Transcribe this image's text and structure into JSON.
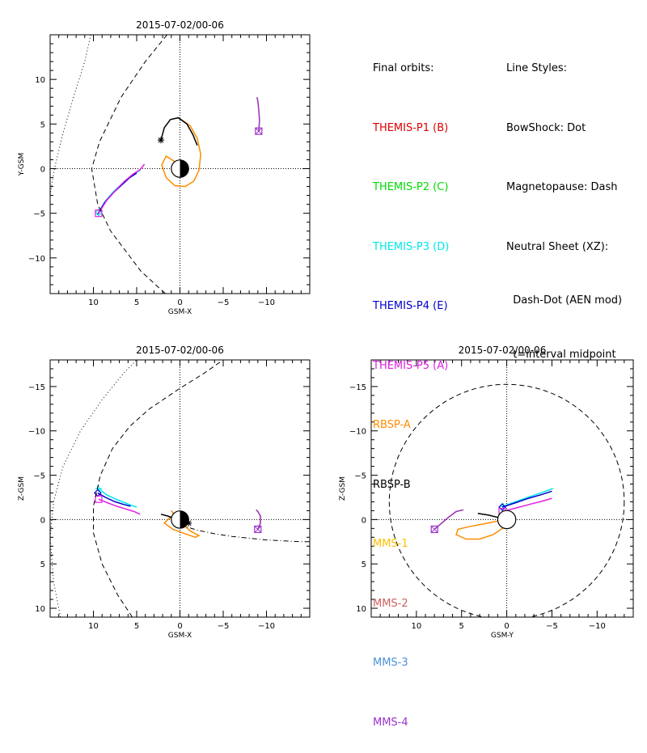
{
  "chart_data": [
    {
      "type": "line",
      "title": "2015-07-02/00-06",
      "xlabel": "GSM-X",
      "ylabel": "Y-GSM",
      "xlim": [
        15,
        -15
      ],
      "ylim": [
        15,
        -14
      ],
      "xticks": [
        10,
        5,
        0,
        -5,
        -10
      ],
      "yticks": [
        -10,
        -5,
        0,
        5,
        10
      ],
      "series": [
        {
          "name": "THEMIS-P3 (D)",
          "color": "#00e8e8",
          "style": "solid",
          "x": [
            9.4,
            8.6,
            7.6,
            6.6,
            5.6,
            4.8,
            4.6
          ],
          "y": [
            -4.9,
            -3.6,
            -2.5,
            -1.6,
            -0.8,
            -0.3,
            -0.2
          ],
          "end_marker": "diamond"
        },
        {
          "name": "THEMIS-P4 (E)",
          "color": "#0000cc",
          "style": "solid",
          "x": [
            9.5,
            8.7,
            7.7,
            6.7,
            5.8,
            5.0
          ],
          "y": [
            -5.1,
            -3.8,
            -2.7,
            -1.8,
            -1.0,
            -0.5
          ]
        },
        {
          "name": "THEMIS-P5 (A)",
          "color": "#e020e0",
          "style": "solid",
          "x": [
            9.4,
            8.5,
            7.4,
            6.4,
            5.4,
            4.6,
            4.1
          ],
          "y": [
            -5.0,
            -3.6,
            -2.4,
            -1.4,
            -0.6,
            -0.1,
            0.5
          ],
          "end_marker": "square"
        },
        {
          "name": "RBSP-A",
          "color": "#ff8c00",
          "style": "solid",
          "x": [
            0.0,
            -1.2,
            -2.0,
            -2.4,
            -2.2,
            -1.6,
            -0.6,
            0.6,
            1.6,
            2.1,
            1.6,
            0.6,
            0.0
          ],
          "y": [
            5.6,
            4.8,
            3.4,
            1.6,
            -0.2,
            -1.4,
            -2.0,
            -1.9,
            -1.0,
            0.4,
            1.4,
            0.8,
            0.0
          ]
        },
        {
          "name": "RBSP-B",
          "color": "#000000",
          "style": "solid",
          "x": [
            2.2,
            1.8,
            1.1,
            0.2,
            -0.8,
            -1.5,
            -2.0
          ],
          "y": [
            3.2,
            4.6,
            5.5,
            5.7,
            5.0,
            3.8,
            2.6
          ],
          "end_marker": "star"
        },
        {
          "name": "MMS-1",
          "color": "#ffc000",
          "style": "solid",
          "x": [
            -9.1,
            -9.2,
            -9.1,
            -9.0,
            -8.9
          ],
          "y": [
            4.2,
            5.4,
            6.6,
            7.6,
            8.0
          ]
        },
        {
          "name": "MMS-4",
          "color": "#9933cc",
          "style": "solid",
          "x": [
            -9.1,
            -9.2,
            -9.1,
            -9.0,
            -8.9
          ],
          "y": [
            4.2,
            5.4,
            6.6,
            7.6,
            8.0
          ],
          "end_marker": "square-x"
        },
        {
          "name": "BowShock",
          "color": "#000000",
          "style": "dot",
          "x": [
            10.3,
            11.0,
            12.3,
            13.5,
            14.5,
            15.0
          ],
          "y": [
            15.0,
            12.0,
            8.0,
            4.0,
            0.0,
            -3.0
          ]
        },
        {
          "name": "Magnetopause",
          "color": "#000000",
          "style": "dash",
          "x": [
            1.5,
            4.0,
            6.8,
            9.3,
            10.2,
            9.5,
            8.0,
            4.5,
            0.0
          ],
          "y": [
            15.0,
            12.0,
            8.0,
            3.0,
            0.0,
            -4.0,
            -7.0,
            -11.5,
            -15.5
          ]
        }
      ]
    },
    {
      "type": "line",
      "title": "2015-07-02/00-06",
      "xlabel": "GSM-X",
      "ylabel": "Z-GSM",
      "xlim": [
        15,
        -15
      ],
      "ylim": [
        -18,
        11
      ],
      "xticks": [
        10,
        5,
        0,
        -5,
        -10
      ],
      "yticks": [
        10,
        5,
        0,
        -5,
        -10,
        -15
      ],
      "series": [
        {
          "name": "THEMIS-P3 (D)",
          "color": "#00e8e8",
          "style": "solid",
          "x": [
            9.4,
            8.5,
            7.4,
            6.4,
            5.6,
            5.0
          ],
          "y": [
            -3.5,
            -2.8,
            -2.3,
            -1.9,
            -1.6,
            -1.4
          ],
          "end_marker": "plus"
        },
        {
          "name": "THEMIS-P4 (E)",
          "color": "#0000cc",
          "style": "solid",
          "x": [
            9.5,
            8.6,
            7.5,
            6.5,
            5.7
          ],
          "y": [
            -3.0,
            -2.5,
            -2.0,
            -1.7,
            -1.5
          ],
          "end_marker": "diamond"
        },
        {
          "name": "THEMIS-P5 (A)",
          "color": "#e020e0",
          "style": "solid",
          "x": [
            9.4,
            8.4,
            7.3,
            6.3,
            5.3,
            4.6
          ],
          "y": [
            -2.3,
            -1.9,
            -1.5,
            -1.2,
            -0.9,
            -0.6
          ],
          "end_marker": "square"
        },
        {
          "name": "RBSP-A",
          "color": "#ff8c00",
          "style": "solid",
          "x": [
            1.0,
            0.0,
            -1.2,
            -2.2,
            -1.8,
            -0.6,
            0.8,
            1.8,
            1.2,
            0.0
          ],
          "y": [
            -1.0,
            0.2,
            1.3,
            1.8,
            2.0,
            1.6,
            1.1,
            0.4,
            -0.2,
            0.0
          ]
        },
        {
          "name": "RBSP-B",
          "color": "#000000",
          "style": "solid",
          "x": [
            -1.0,
            -0.2,
            0.6,
            1.4,
            2.2
          ],
          "y": [
            0.4,
            0.2,
            -0.1,
            -0.4,
            -0.6
          ],
          "end_marker": "star"
        },
        {
          "name": "MMS-1",
          "color": "#ffc000",
          "style": "solid",
          "x": [
            -9.0,
            -9.3,
            -9.3,
            -9.0,
            -8.8
          ],
          "y": [
            1.1,
            0.4,
            -0.4,
            -0.9,
            -1.1
          ]
        },
        {
          "name": "MMS-4",
          "color": "#9933cc",
          "style": "solid",
          "x": [
            -9.0,
            -9.3,
            -9.3,
            -9.0,
            -8.8
          ],
          "y": [
            1.1,
            0.4,
            -0.4,
            -0.9,
            -1.1
          ],
          "end_marker": "square-x"
        },
        {
          "name": "BowShock",
          "color": "#000000",
          "style": "dot",
          "x": [
            13.8,
            14.6,
            15.0,
            14.6,
            13.5,
            11.5,
            9.0,
            6.5,
            5.0
          ],
          "y": [
            11.0,
            7.0,
            2.0,
            -2.0,
            -6.0,
            -10.0,
            -13.5,
            -16.5,
            -18.0
          ]
        },
        {
          "name": "Magnetopause",
          "color": "#000000",
          "style": "dash",
          "x": [
            5.5,
            7.2,
            9.0,
            10.0,
            10.0,
            9.2,
            7.8,
            5.8,
            3.5,
            0.0,
            -2.8,
            -5.0
          ],
          "y": [
            11.0,
            8.5,
            5.0,
            1.5,
            -1.5,
            -5.0,
            -8.0,
            -10.5,
            -12.5,
            -14.8,
            -16.5,
            -18.0
          ]
        },
        {
          "name": "Neutral Sheet",
          "color": "#000000",
          "style": "dashdot",
          "x": [
            0.0,
            -2.0,
            -4.0,
            -6.0,
            -8.0,
            -10.0,
            -12.0,
            -14.0,
            -15.0
          ],
          "y": [
            0.6,
            1.2,
            1.6,
            1.9,
            2.1,
            2.3,
            2.4,
            2.5,
            2.5
          ]
        }
      ]
    },
    {
      "type": "line",
      "title": "2015-07-02/00-06",
      "xlabel": "GSM-Y",
      "ylabel": "Z-GSM",
      "xlim": [
        15,
        -14
      ],
      "ylim": [
        -18,
        11
      ],
      "xticks": [
        10,
        5,
        0,
        -5,
        -10
      ],
      "yticks": [
        10,
        5,
        0,
        -5,
        -10,
        -15
      ],
      "series": [
        {
          "name": "THEMIS-P3 (D)",
          "color": "#00e8e8",
          "style": "solid",
          "x": [
            0.4,
            -1.2,
            -2.6,
            -4.0,
            -5.1
          ],
          "y": [
            -1.5,
            -2.1,
            -2.6,
            -3.1,
            -3.5
          ],
          "end_marker": "plus"
        },
        {
          "name": "THEMIS-P4 (E)",
          "color": "#0000cc",
          "style": "solid",
          "x": [
            0.5,
            -1.0,
            -2.4,
            -3.8,
            -5.0
          ],
          "y": [
            -1.4,
            -1.9,
            -2.4,
            -2.8,
            -3.2
          ],
          "end_marker": "diamond"
        },
        {
          "name": "THEMIS-P5 (A)",
          "color": "#e020e0",
          "style": "solid",
          "x": [
            0.5,
            -1.0,
            -2.5,
            -4.0,
            -5.0
          ],
          "y": [
            -0.9,
            -1.3,
            -1.7,
            -2.1,
            -2.4
          ],
          "end_marker": "square"
        },
        {
          "name": "RBSP-A",
          "color": "#ff8c00",
          "style": "solid",
          "x": [
            -0.5,
            0.2,
            1.5,
            3.0,
            4.5,
            5.6,
            5.4,
            4.2,
            2.6,
            1.2,
            0.0
          ],
          "y": [
            -0.6,
            0.8,
            1.7,
            2.2,
            2.2,
            1.7,
            1.1,
            0.8,
            0.5,
            0.2,
            0.0
          ]
        },
        {
          "name": "RBSP-B",
          "color": "#000000",
          "style": "solid",
          "x": [
            -0.2,
            0.8,
            2.0,
            3.2
          ],
          "y": [
            0.0,
            -0.2,
            -0.5,
            -0.7
          ],
          "end_marker": "star"
        },
        {
          "name": "MMS-1",
          "color": "#ffc000",
          "style": "solid",
          "x": [
            8.0,
            7.2,
            6.4,
            5.6,
            4.8
          ],
          "y": [
            1.1,
            0.4,
            -0.3,
            -0.9,
            -1.1
          ]
        },
        {
          "name": "MMS-4",
          "color": "#9933cc",
          "style": "solid",
          "x": [
            8.0,
            7.2,
            6.4,
            5.6,
            4.8
          ],
          "y": [
            1.1,
            0.4,
            -0.3,
            -0.9,
            -1.1
          ],
          "end_marker": "square-x"
        },
        {
          "name": "Magnetopause",
          "color": "#000000",
          "style": "dash",
          "shape": "circle",
          "center": [
            0,
            -2.0
          ],
          "radius": 13.0
        }
      ]
    }
  ],
  "legend": {
    "heading": "Final orbits:",
    "entries": [
      {
        "label": "THEMIS-P1 (B)",
        "color": "#dd0000"
      },
      {
        "label": "THEMIS-P2 (C)",
        "color": "#00dd00"
      },
      {
        "label": "THEMIS-P3 (D)",
        "color": "#00e8e8"
      },
      {
        "label": "THEMIS-P4 (E)",
        "color": "#0000cc"
      },
      {
        "label": "THEMIS-P5 (A)",
        "color": "#e020e0"
      },
      {
        "label": "RBSP-A",
        "color": "#ff8c00"
      },
      {
        "label": "RBSP-B",
        "color": "#000000"
      },
      {
        "label": "MMS-1",
        "color": "#ffc000"
      },
      {
        "label": "MMS-2",
        "color": "#d06060"
      },
      {
        "label": "MMS-3",
        "color": "#4a90d9"
      },
      {
        "label": "MMS-4",
        "color": "#9933cc"
      }
    ]
  },
  "line_styles": {
    "heading": "Line Styles:",
    "lines": [
      "BowShock: Dot",
      "Magnetopause: Dash",
      "Neutral Sheet (XZ):",
      "  Dash-Dot (AEN mod)",
      "  t=interval midpoint"
    ]
  }
}
